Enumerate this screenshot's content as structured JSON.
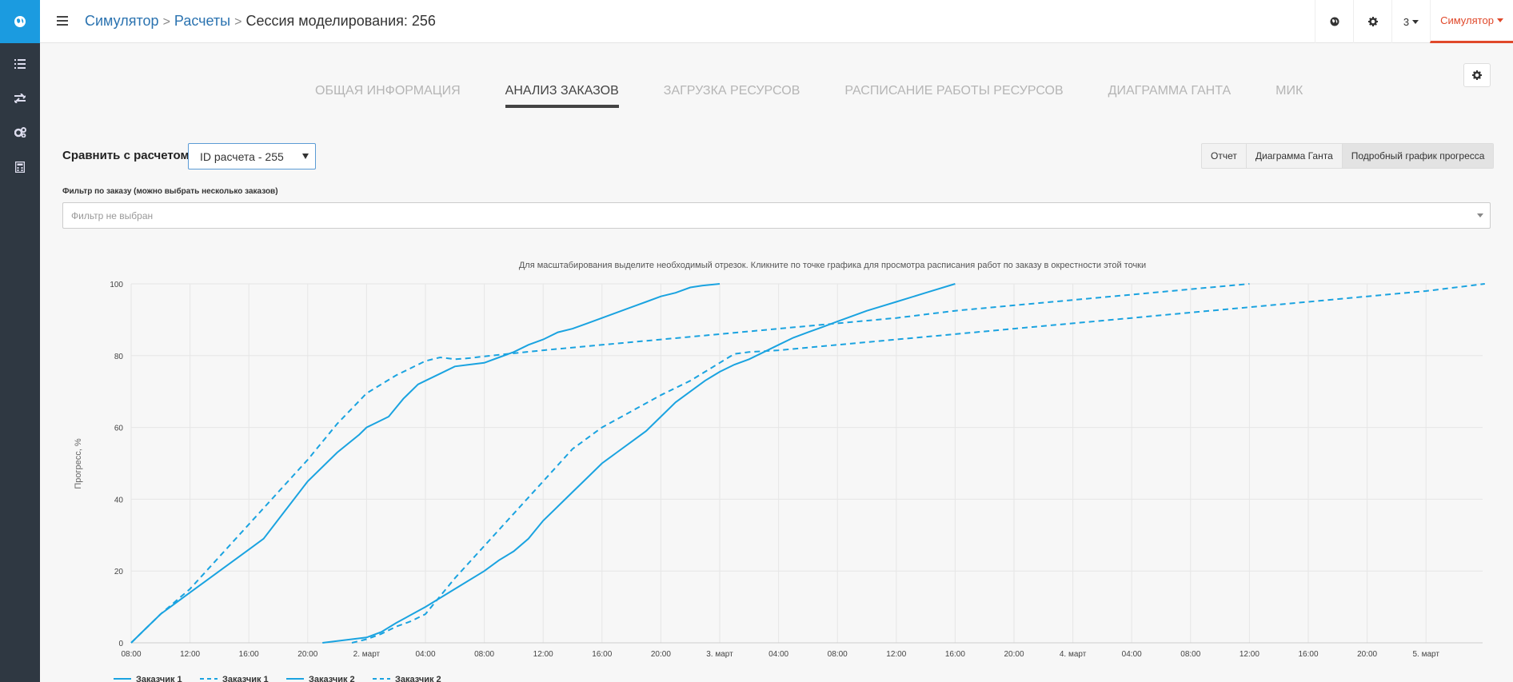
{
  "header": {
    "breadcrumb": [
      {
        "label": "Симулятор",
        "link": true
      },
      {
        "label": "Расчеты",
        "link": true
      },
      {
        "label": "Сессия моделирования: 256",
        "link": false
      }
    ],
    "user_number": "3",
    "app_menu": "Симулятор",
    "accent_color": "#e0482a",
    "brand_color": "#1b9be0"
  },
  "sidebar": {
    "items": [
      {
        "icon": "list-icon"
      },
      {
        "icon": "exchange-icon"
      },
      {
        "icon": "cogs-icon"
      },
      {
        "icon": "calculator-icon"
      }
    ]
  },
  "tabs": [
    {
      "label": "ОБЩАЯ ИНФОРМАЦИЯ",
      "active": false
    },
    {
      "label": "АНАЛИЗ ЗАКАЗОВ",
      "active": true
    },
    {
      "label": "ЗАГРУЗКА РЕСУРСОВ",
      "active": false
    },
    {
      "label": "РАСПИСАНИЕ РАБОТЫ РЕСУРСОВ",
      "active": false
    },
    {
      "label": "ДИАГРАММА ГАНТА",
      "active": false
    },
    {
      "label": "МИК",
      "active": false
    }
  ],
  "compare": {
    "label": "Сравнить с расчетом:",
    "selected": "ID расчета - 255"
  },
  "view_buttons": [
    {
      "label": "Отчет",
      "active": false
    },
    {
      "label": "Диаграмма Ганта",
      "active": false
    },
    {
      "label": "Подробный график прогресса",
      "active": true
    }
  ],
  "filter": {
    "label": "Фильтр по заказу (можно выбрать несколько заказов)",
    "placeholder": "Фильтр не выбран"
  },
  "chart_hint": "Для масштабирования выделите необходимый отрезок. Кликните по точке графика для просмотра расписания работ по заказу в окрестности этой точки",
  "chart_data": {
    "type": "line",
    "ylabel": "Прогресс, %",
    "ylim": [
      0,
      100
    ],
    "yticks": [
      0,
      20,
      40,
      60,
      80,
      100
    ],
    "x_unit": "hours since 1 March 08:00",
    "xlim": [
      0,
      94
    ],
    "xticks": [
      {
        "x": 0,
        "label": "08:00"
      },
      {
        "x": 4,
        "label": "12:00"
      },
      {
        "x": 8,
        "label": "16:00"
      },
      {
        "x": 12,
        "label": "20:00"
      },
      {
        "x": 16,
        "label": "2. март"
      },
      {
        "x": 20,
        "label": "04:00"
      },
      {
        "x": 24,
        "label": "08:00"
      },
      {
        "x": 28,
        "label": "12:00"
      },
      {
        "x": 32,
        "label": "16:00"
      },
      {
        "x": 36,
        "label": "20:00"
      },
      {
        "x": 40,
        "label": "3. март"
      },
      {
        "x": 44,
        "label": "04:00"
      },
      {
        "x": 48,
        "label": "08:00"
      },
      {
        "x": 52,
        "label": "12:00"
      },
      {
        "x": 56,
        "label": "16:00"
      },
      {
        "x": 60,
        "label": "20:00"
      },
      {
        "x": 64,
        "label": "4. март"
      },
      {
        "x": 68,
        "label": "04:00"
      },
      {
        "x": 72,
        "label": "08:00"
      },
      {
        "x": 76,
        "label": "12:00"
      },
      {
        "x": 80,
        "label": "16:00"
      },
      {
        "x": 84,
        "label": "20:00"
      },
      {
        "x": 88,
        "label": "5. март"
      }
    ],
    "series": [
      {
        "name": "Заказчик 1",
        "dash": false,
        "color": "#1aa3e0",
        "points": [
          [
            0,
            0
          ],
          [
            1,
            4
          ],
          [
            2,
            8
          ],
          [
            4,
            14
          ],
          [
            6,
            20
          ],
          [
            8,
            26
          ],
          [
            9,
            29
          ],
          [
            10.5,
            37
          ],
          [
            12,
            45
          ],
          [
            14,
            53
          ],
          [
            15.5,
            58
          ],
          [
            16,
            60
          ],
          [
            16.5,
            61
          ],
          [
            17,
            62
          ],
          [
            17.5,
            63
          ],
          [
            18.5,
            68
          ],
          [
            19.5,
            72
          ],
          [
            20,
            73
          ],
          [
            21,
            75
          ],
          [
            22,
            77
          ],
          [
            23,
            77.5
          ],
          [
            24,
            78
          ],
          [
            25,
            79.5
          ],
          [
            26,
            81
          ],
          [
            27,
            83
          ],
          [
            28,
            84.5
          ],
          [
            29,
            86.5
          ],
          [
            30,
            87.5
          ],
          [
            31,
            89
          ],
          [
            32,
            90.5
          ],
          [
            33,
            92
          ],
          [
            34,
            93.5
          ],
          [
            35,
            95
          ],
          [
            36,
            96.5
          ],
          [
            37,
            97.5
          ],
          [
            38,
            99
          ],
          [
            38.8,
            99.5
          ],
          [
            40,
            100
          ]
        ]
      },
      {
        "name": "Заказчик 1",
        "dash": true,
        "color": "#1aa3e0",
        "points": [
          [
            0,
            0
          ],
          [
            2,
            8
          ],
          [
            4,
            15
          ],
          [
            6,
            24
          ],
          [
            8,
            33
          ],
          [
            10,
            42
          ],
          [
            12,
            51
          ],
          [
            14,
            61
          ],
          [
            16,
            69.5
          ],
          [
            17,
            72
          ],
          [
            18,
            74.5
          ],
          [
            19,
            76.5
          ],
          [
            20,
            78.5
          ],
          [
            21,
            79.5
          ],
          [
            22,
            79
          ],
          [
            23,
            79.3
          ],
          [
            24,
            79.8
          ],
          [
            28,
            81.5
          ],
          [
            32,
            83
          ],
          [
            36,
            84.5
          ],
          [
            40,
            86
          ],
          [
            44,
            87.5
          ],
          [
            48,
            89
          ],
          [
            52,
            90.5
          ],
          [
            56,
            92.5
          ],
          [
            60,
            94
          ],
          [
            64,
            95.5
          ],
          [
            68,
            97
          ],
          [
            72,
            98.5
          ],
          [
            76,
            100
          ]
        ]
      },
      {
        "name": "Заказчик 2",
        "dash": false,
        "color": "#1aa3e0",
        "points": [
          [
            13,
            0
          ],
          [
            15,
            1
          ],
          [
            16,
            1.5
          ],
          [
            17,
            3
          ],
          [
            18,
            5.5
          ],
          [
            20,
            10
          ],
          [
            22,
            15
          ],
          [
            24,
            20
          ],
          [
            25,
            23
          ],
          [
            26,
            25.5
          ],
          [
            27,
            29
          ],
          [
            28,
            34
          ],
          [
            29,
            38
          ],
          [
            30,
            42
          ],
          [
            31,
            46
          ],
          [
            32,
            50
          ],
          [
            33,
            53
          ],
          [
            34,
            56
          ],
          [
            35,
            59
          ],
          [
            36,
            63
          ],
          [
            37,
            67
          ],
          [
            38,
            70
          ],
          [
            39,
            73
          ],
          [
            40,
            75.5
          ],
          [
            41,
            77.5
          ],
          [
            42,
            79
          ],
          [
            43,
            81
          ],
          [
            44,
            83
          ],
          [
            45,
            85
          ],
          [
            46,
            86.5
          ],
          [
            47,
            88
          ],
          [
            48,
            89.5
          ],
          [
            50,
            92.5
          ],
          [
            52,
            95
          ],
          [
            54,
            97.5
          ],
          [
            56,
            100
          ]
        ]
      },
      {
        "name": "Заказчик 2",
        "dash": true,
        "color": "#1aa3e0",
        "points": [
          [
            15,
            0
          ],
          [
            16,
            1
          ],
          [
            17,
            2.5
          ],
          [
            18,
            4.5
          ],
          [
            19,
            6
          ],
          [
            20,
            8
          ],
          [
            21,
            13
          ],
          [
            22,
            18
          ],
          [
            24,
            27
          ],
          [
            26,
            36
          ],
          [
            28,
            45
          ],
          [
            30,
            54
          ],
          [
            32,
            60
          ],
          [
            34,
            64.5
          ],
          [
            36,
            69
          ],
          [
            38,
            73
          ],
          [
            40,
            78
          ],
          [
            41,
            80.5
          ],
          [
            42,
            81
          ],
          [
            44,
            81.5
          ],
          [
            48,
            83
          ],
          [
            52,
            84.5
          ],
          [
            56,
            86
          ],
          [
            60,
            87.5
          ],
          [
            64,
            89
          ],
          [
            68,
            90.5
          ],
          [
            72,
            92
          ],
          [
            76,
            93.5
          ],
          [
            80,
            95
          ],
          [
            84,
            96.5
          ],
          [
            88,
            98
          ],
          [
            92,
            100
          ]
        ]
      }
    ],
    "legend": [
      "Заказчик 1",
      "Заказчик 1",
      "Заказчик 2",
      "Заказчик 2"
    ],
    "legend_position": "bottom-left",
    "grid": true
  }
}
